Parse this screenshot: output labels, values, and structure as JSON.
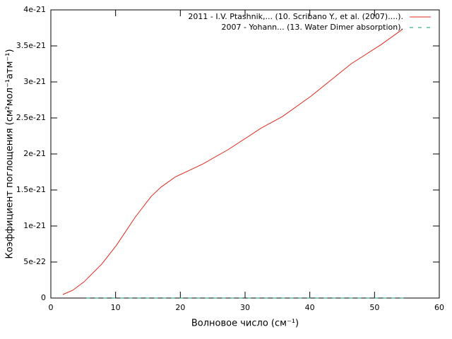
{
  "chart_data": {
    "type": "line",
    "xlabel": "Волновое число (см⁻¹)",
    "ylabel": "Коэффициент поглощения (см²мол⁻¹атм⁻¹)",
    "xlim": [
      0,
      60
    ],
    "xticks": [
      0,
      10,
      20,
      30,
      40,
      50,
      60
    ],
    "ylim": [
      0,
      4e-21
    ],
    "yticks": [
      {
        "value": 0,
        "label": "0"
      },
      {
        "value": 5e-22,
        "label": "5e-22"
      },
      {
        "value": 1e-21,
        "label": "1e-21"
      },
      {
        "value": 1.5e-21,
        "label": "1.5e-21"
      },
      {
        "value": 2e-21,
        "label": "2e-21"
      },
      {
        "value": 2.5e-21,
        "label": "2.5e-21"
      },
      {
        "value": 3e-21,
        "label": "3e-21"
      },
      {
        "value": 3.5e-21,
        "label": "3.5e-21"
      },
      {
        "value": 4e-21,
        "label": "4e-21"
      }
    ],
    "grid": false,
    "legend": "top right",
    "series": [
      {
        "name": "2011 - I.V. Ptashnik,... (10. Scribano Y., et al. (2007)....).",
        "color": "#e0281c",
        "dash": false,
        "x": [
          1.85,
          3.38,
          5.13,
          7.85,
          10.15,
          13.09,
          15.49,
          17.02,
          19.2,
          23.45,
          27.38,
          32.5,
          35.78,
          40.15,
          46.36,
          51.05,
          54.3
        ],
        "values": [
          4.9e-23,
          1.08e-22,
          2.25e-22,
          4.7e-22,
          7.35e-22,
          1.13e-21,
          1.41e-21,
          1.54e-21,
          1.68e-21,
          1.86e-21,
          2.06e-21,
          2.36e-21,
          2.52e-21,
          2.8e-21,
          3.25e-21,
          3.52e-21,
          3.73e-21
        ]
      },
      {
        "name": "2007 - Yohann... (13. Water Dimer absorption).",
        "color": "#009e73",
        "dash": true,
        "x": [
          5.5,
          10,
          15,
          20,
          25,
          30,
          35,
          40,
          45,
          50,
          54.5
        ],
        "values": [
          0,
          0,
          0,
          0,
          0,
          0,
          0,
          0,
          0,
          0,
          0
        ]
      }
    ]
  }
}
